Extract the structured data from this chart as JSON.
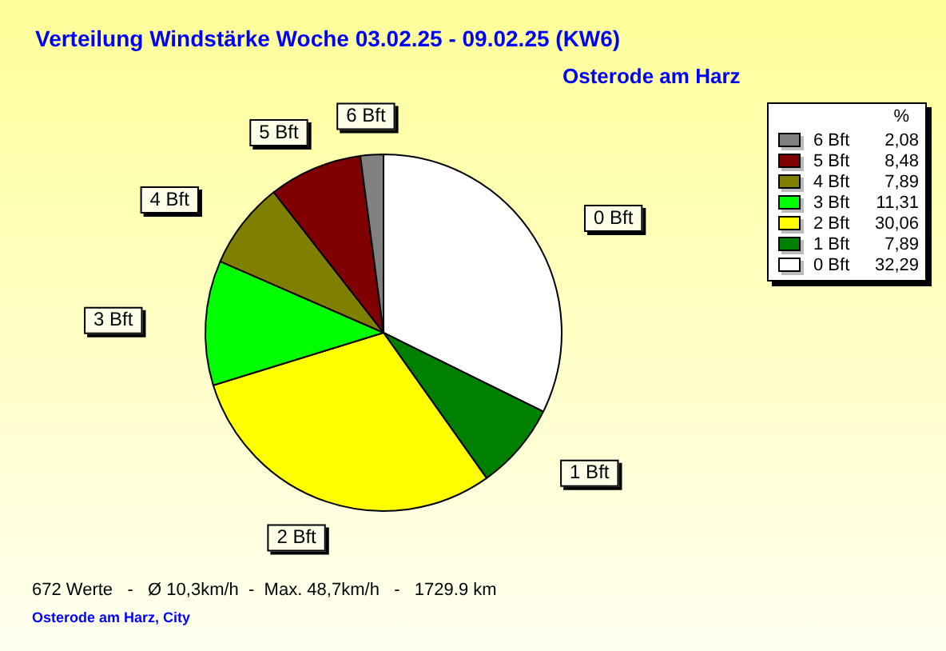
{
  "chart_data": {
    "type": "pie",
    "title": "Verteilung Windstärke  Woche 03.02.25 - 09.02.25 (KW6)",
    "subtitle": "Osterode am Harz",
    "legend_title": "%",
    "legend": "top right",
    "categories": [
      "0 Bft",
      "1 Bft",
      "2 Bft",
      "3 Bft",
      "4 Bft",
      "5 Bft",
      "6 Bft"
    ],
    "values": [
      32.29,
      7.89,
      30.06,
      11.31,
      7.89,
      8.48,
      2.08
    ],
    "value_labels": [
      "32,29",
      "7,89",
      "30,06",
      "11,31",
      "7,89",
      "8,48",
      "2,08"
    ],
    "colors": [
      "#ffffff",
      "#008000",
      "#ffff00",
      "#00ff00",
      "#808000",
      "#800000",
      "#808080"
    ],
    "annotations": [
      "672 Werte   -   Ø 10,3km/h  -  Max. 48,7km/h   -   1729.9 km",
      "Osterode am Harz, City"
    ]
  }
}
